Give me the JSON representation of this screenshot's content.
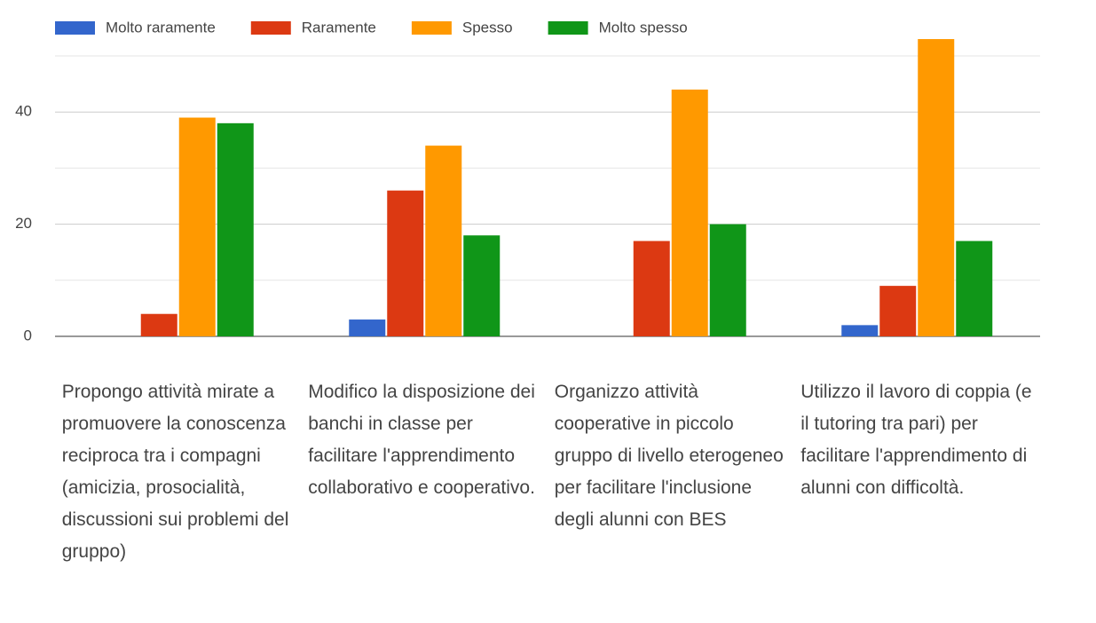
{
  "chart_data": {
    "type": "bar",
    "categories": [
      "Propongo attività mirate a promuovere la conoscenza reciproca tra i compagni (amicizia, prosocialità, discussioni sui problemi del gruppo)",
      "Modifico la disposizione dei banchi in classe per facilitare l'apprendimento collaborativo e cooperativo.",
      "Organizzo attività cooperative in piccolo gruppo di livello eterogeneo per facilitare l'inclusione degli alunni con BES",
      "Utilizzo il lavoro di coppia (e il tutoring tra pari) per facilitare l'apprendimento di alunni con difficoltà."
    ],
    "series": [
      {
        "name": "Molto raramente",
        "color": "#3366cc",
        "values": [
          0,
          3,
          0,
          2
        ]
      },
      {
        "name": "Raramente",
        "color": "#dc3912",
        "values": [
          4,
          26,
          17,
          9
        ]
      },
      {
        "name": "Spesso",
        "color": "#ff9900",
        "values": [
          39,
          34,
          44,
          53
        ]
      },
      {
        "name": "Molto spesso",
        "color": "#109618",
        "values": [
          38,
          18,
          20,
          17
        ]
      }
    ],
    "ylim": [
      0,
      50
    ],
    "yticks": [
      0,
      20,
      40
    ],
    "minor_yticks": [
      10,
      30,
      50
    ],
    "grid": true,
    "legend": "top"
  }
}
